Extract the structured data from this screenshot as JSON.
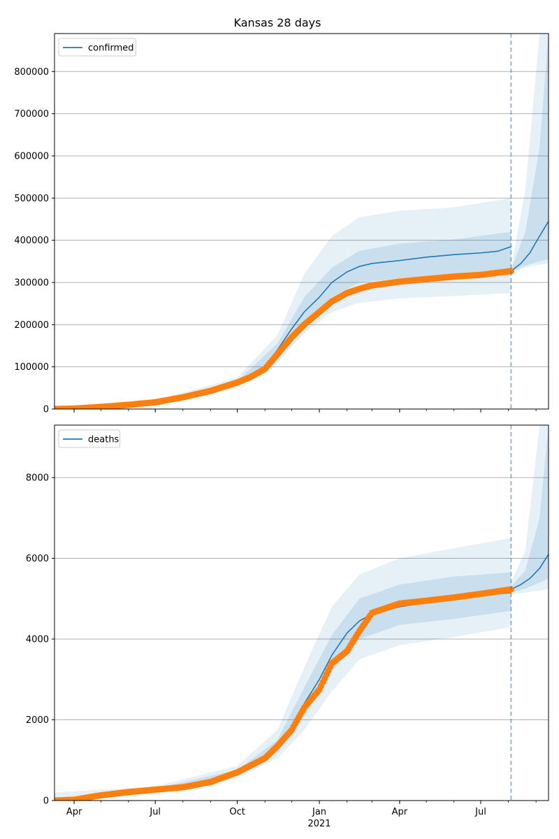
{
  "figure": {
    "title": "Kansas 28 days"
  },
  "colors": {
    "model_line": "#1f77b4",
    "observed_points": "#ff7f0e",
    "band_fill": "#1f77b4",
    "grid": "#b0b0b0",
    "axes": "#000000"
  },
  "chart_data": [
    {
      "type": "line",
      "name": "confirmed-panel",
      "title": "Kansas 28 days",
      "legend": {
        "entries": [
          "confirmed"
        ],
        "placement": "upper-left"
      },
      "x_range": [
        "2020-03-10",
        "2021-09-15"
      ],
      "y_range": [
        0,
        890000
      ],
      "y_ticks": [
        0,
        100000,
        200000,
        300000,
        400000,
        500000,
        600000,
        700000,
        800000
      ],
      "grid": "horizontal",
      "forecast_start": "2021-08-04",
      "model": {
        "name": "confirmed",
        "points": [
          [
            "2020-03-10",
            0
          ],
          [
            "2020-04-01",
            1000
          ],
          [
            "2020-05-01",
            6000
          ],
          [
            "2020-06-01",
            10000
          ],
          [
            "2020-07-01",
            15000
          ],
          [
            "2020-08-01",
            28000
          ],
          [
            "2020-09-01",
            42000
          ],
          [
            "2020-10-01",
            62000
          ],
          [
            "2020-10-15",
            75000
          ],
          [
            "2020-11-01",
            100000
          ],
          [
            "2020-11-15",
            140000
          ],
          [
            "2020-12-01",
            190000
          ],
          [
            "2020-12-15",
            230000
          ],
          [
            "2021-01-01",
            265000
          ],
          [
            "2021-01-15",
            300000
          ],
          [
            "2021-02-01",
            325000
          ],
          [
            "2021-02-15",
            338000
          ],
          [
            "2021-03-01",
            345000
          ],
          [
            "2021-04-01",
            352000
          ],
          [
            "2021-05-01",
            360000
          ],
          [
            "2021-06-01",
            366000
          ],
          [
            "2021-07-01",
            370000
          ],
          [
            "2021-07-20",
            374000
          ],
          [
            "2021-08-04",
            385000
          ]
        ],
        "forecast": [
          [
            "2021-08-04",
            327000
          ],
          [
            "2021-08-15",
            345000
          ],
          [
            "2021-08-25",
            370000
          ],
          [
            "2021-09-05",
            410000
          ],
          [
            "2021-09-15",
            445000
          ]
        ]
      },
      "bands": [
        {
          "name": "inner",
          "points": [
            [
              "2020-03-10",
              0,
              0
            ],
            [
              "2020-07-01",
              14000,
              16000
            ],
            [
              "2020-10-01",
              57000,
              67000
            ],
            [
              "2020-11-15",
              125000,
              155000
            ],
            [
              "2020-12-15",
              205000,
              265000
            ],
            [
              "2021-01-15",
              265000,
              335000
            ],
            [
              "2021-02-15",
              300000,
              375000
            ],
            [
              "2021-04-01",
              310000,
              392000
            ],
            [
              "2021-06-01",
              318000,
              402000
            ],
            [
              "2021-08-04",
              325000,
              420000
            ]
          ],
          "forecast": [
            [
              "2021-08-04",
              325000,
              330000
            ],
            [
              "2021-08-20",
              340000,
              420000
            ],
            [
              "2021-09-05",
              350000,
              620000
            ],
            [
              "2021-09-15",
              355000,
              900000
            ]
          ]
        },
        {
          "name": "outer",
          "points": [
            [
              "2020-03-10",
              0,
              3000
            ],
            [
              "2020-07-01",
              12000,
              20000
            ],
            [
              "2020-10-01",
              50000,
              75000
            ],
            [
              "2020-11-15",
              110000,
              175000
            ],
            [
              "2020-12-15",
              180000,
              320000
            ],
            [
              "2021-01-15",
              230000,
              410000
            ],
            [
              "2021-02-15",
              252000,
              455000
            ],
            [
              "2021-04-01",
              262000,
              470000
            ],
            [
              "2021-06-01",
              268000,
              478000
            ],
            [
              "2021-08-04",
              275000,
              500000
            ]
          ],
          "forecast": [
            [
              "2021-08-04",
              322000,
              335000
            ],
            [
              "2021-08-20",
              335000,
              520000
            ],
            [
              "2021-09-05",
              342000,
              900000
            ],
            [
              "2021-09-15",
              345000,
              900000
            ]
          ]
        }
      ],
      "observed": {
        "points": [
          [
            "2020-03-10",
            0
          ],
          [
            "2020-04-01",
            1000
          ],
          [
            "2020-05-01",
            5000
          ],
          [
            "2020-06-01",
            10000
          ],
          [
            "2020-07-01",
            16000
          ],
          [
            "2020-08-01",
            28000
          ],
          [
            "2020-09-01",
            43000
          ],
          [
            "2020-10-01",
            63000
          ],
          [
            "2020-10-15",
            75000
          ],
          [
            "2020-11-01",
            95000
          ],
          [
            "2020-11-15",
            130000
          ],
          [
            "2020-12-01",
            170000
          ],
          [
            "2020-12-15",
            200000
          ],
          [
            "2021-01-01",
            230000
          ],
          [
            "2021-01-15",
            255000
          ],
          [
            "2021-02-01",
            275000
          ],
          [
            "2021-02-15",
            285000
          ],
          [
            "2021-03-01",
            293000
          ],
          [
            "2021-04-01",
            302000
          ],
          [
            "2021-05-01",
            308000
          ],
          [
            "2021-06-01",
            314000
          ],
          [
            "2021-07-01",
            318000
          ],
          [
            "2021-08-04",
            327000
          ]
        ]
      }
    },
    {
      "type": "line",
      "name": "deaths-panel",
      "legend": {
        "entries": [
          "deaths"
        ],
        "placement": "upper-left"
      },
      "x_range": [
        "2020-03-10",
        "2021-09-15"
      ],
      "y_range": [
        0,
        9300
      ],
      "y_ticks": [
        0,
        2000,
        4000,
        6000,
        8000
      ],
      "x_ticks": [
        {
          "date": "2020-04-01",
          "label": "Apr"
        },
        {
          "date": "2020-07-01",
          "label": "Jul"
        },
        {
          "date": "2020-10-01",
          "label": "Oct"
        },
        {
          "date": "2021-01-01",
          "label": "Jan"
        },
        {
          "date": "2021-04-01",
          "label": "Apr"
        },
        {
          "date": "2021-07-01",
          "label": "Jul"
        }
      ],
      "x_year_label": {
        "date": "2021-01-01",
        "label": "2021"
      },
      "grid": "horizontal",
      "forecast_start": "2021-08-04",
      "model": {
        "name": "deaths",
        "points": [
          [
            "2020-03-10",
            0
          ],
          [
            "2020-04-01",
            30
          ],
          [
            "2020-05-01",
            150
          ],
          [
            "2020-06-01",
            210
          ],
          [
            "2020-07-01",
            270
          ],
          [
            "2020-08-01",
            330
          ],
          [
            "2020-09-01",
            450
          ],
          [
            "2020-10-01",
            680
          ],
          [
            "2020-11-01",
            1050
          ],
          [
            "2020-11-15",
            1350
          ],
          [
            "2020-12-01",
            1850
          ],
          [
            "2020-12-15",
            2400
          ],
          [
            "2021-01-01",
            3000
          ],
          [
            "2021-01-15",
            3600
          ],
          [
            "2021-02-01",
            4150
          ],
          [
            "2021-02-15",
            4450
          ],
          [
            "2021-03-01",
            4620
          ],
          [
            "2021-04-01",
            4800
          ],
          [
            "2021-05-01",
            4900
          ],
          [
            "2021-06-01",
            5000
          ],
          [
            "2021-07-01",
            5070
          ],
          [
            "2021-08-04",
            5150
          ]
        ],
        "forecast": [
          [
            "2021-08-04",
            5230
          ],
          [
            "2021-08-15",
            5350
          ],
          [
            "2021-08-25",
            5500
          ],
          [
            "2021-09-05",
            5750
          ],
          [
            "2021-09-15",
            6100
          ]
        ]
      },
      "bands": [
        {
          "name": "inner",
          "points": [
            [
              "2020-03-10",
              0,
              50
            ],
            [
              "2020-07-01",
              250,
              300
            ],
            [
              "2020-10-01",
              620,
              760
            ],
            [
              "2020-11-15",
              1200,
              1500
            ],
            [
              "2020-12-15",
              2100,
              2800
            ],
            [
              "2021-01-15",
              3200,
              4100
            ],
            [
              "2021-02-15",
              4000,
              5000
            ],
            [
              "2021-04-01",
              4350,
              5350
            ],
            [
              "2021-06-01",
              4500,
              5550
            ],
            [
              "2021-08-04",
              4700,
              5650
            ]
          ],
          "forecast": [
            [
              "2021-08-04",
              5150,
              5300
            ],
            [
              "2021-08-20",
              5250,
              5700
            ],
            [
              "2021-09-05",
              5400,
              7000
            ],
            [
              "2021-09-15",
              5500,
              9300
            ]
          ]
        },
        {
          "name": "outer",
          "points": [
            [
              "2020-03-10",
              0,
              200
            ],
            [
              "2020-07-01",
              220,
              350
            ],
            [
              "2020-10-01",
              560,
              860
            ],
            [
              "2020-11-15",
              1050,
              1750
            ],
            [
              "2020-12-15",
              1750,
              3300
            ],
            [
              "2021-01-15",
              2700,
              4800
            ],
            [
              "2021-02-15",
              3500,
              5600
            ],
            [
              "2021-04-01",
              3850,
              6000
            ],
            [
              "2021-06-01",
              4050,
              6250
            ],
            [
              "2021-08-04",
              4300,
              6500
            ]
          ],
          "forecast": [
            [
              "2021-08-04",
              5100,
              5400
            ],
            [
              "2021-08-20",
              5150,
              6200
            ],
            [
              "2021-09-05",
              5200,
              9300
            ],
            [
              "2021-09-15",
              5250,
              9300
            ]
          ]
        }
      ],
      "observed": {
        "points": [
          [
            "2020-03-10",
            0
          ],
          [
            "2020-04-01",
            20
          ],
          [
            "2020-05-01",
            130
          ],
          [
            "2020-06-01",
            210
          ],
          [
            "2020-07-01",
            270
          ],
          [
            "2020-08-01",
            330
          ],
          [
            "2020-09-01",
            460
          ],
          [
            "2020-10-01",
            700
          ],
          [
            "2020-11-01",
            1050
          ],
          [
            "2020-11-15",
            1350
          ],
          [
            "2020-12-01",
            1750
          ],
          [
            "2020-12-15",
            2300
          ],
          [
            "2021-01-01",
            2750
          ],
          [
            "2021-01-15",
            3400
          ],
          [
            "2021-02-01",
            3700
          ],
          [
            "2021-02-15",
            4200
          ],
          [
            "2021-03-01",
            4650
          ],
          [
            "2021-04-01",
            4880
          ],
          [
            "2021-05-01",
            4950
          ],
          [
            "2021-06-01",
            5030
          ],
          [
            "2021-07-01",
            5120
          ],
          [
            "2021-08-04",
            5230
          ]
        ]
      }
    }
  ]
}
